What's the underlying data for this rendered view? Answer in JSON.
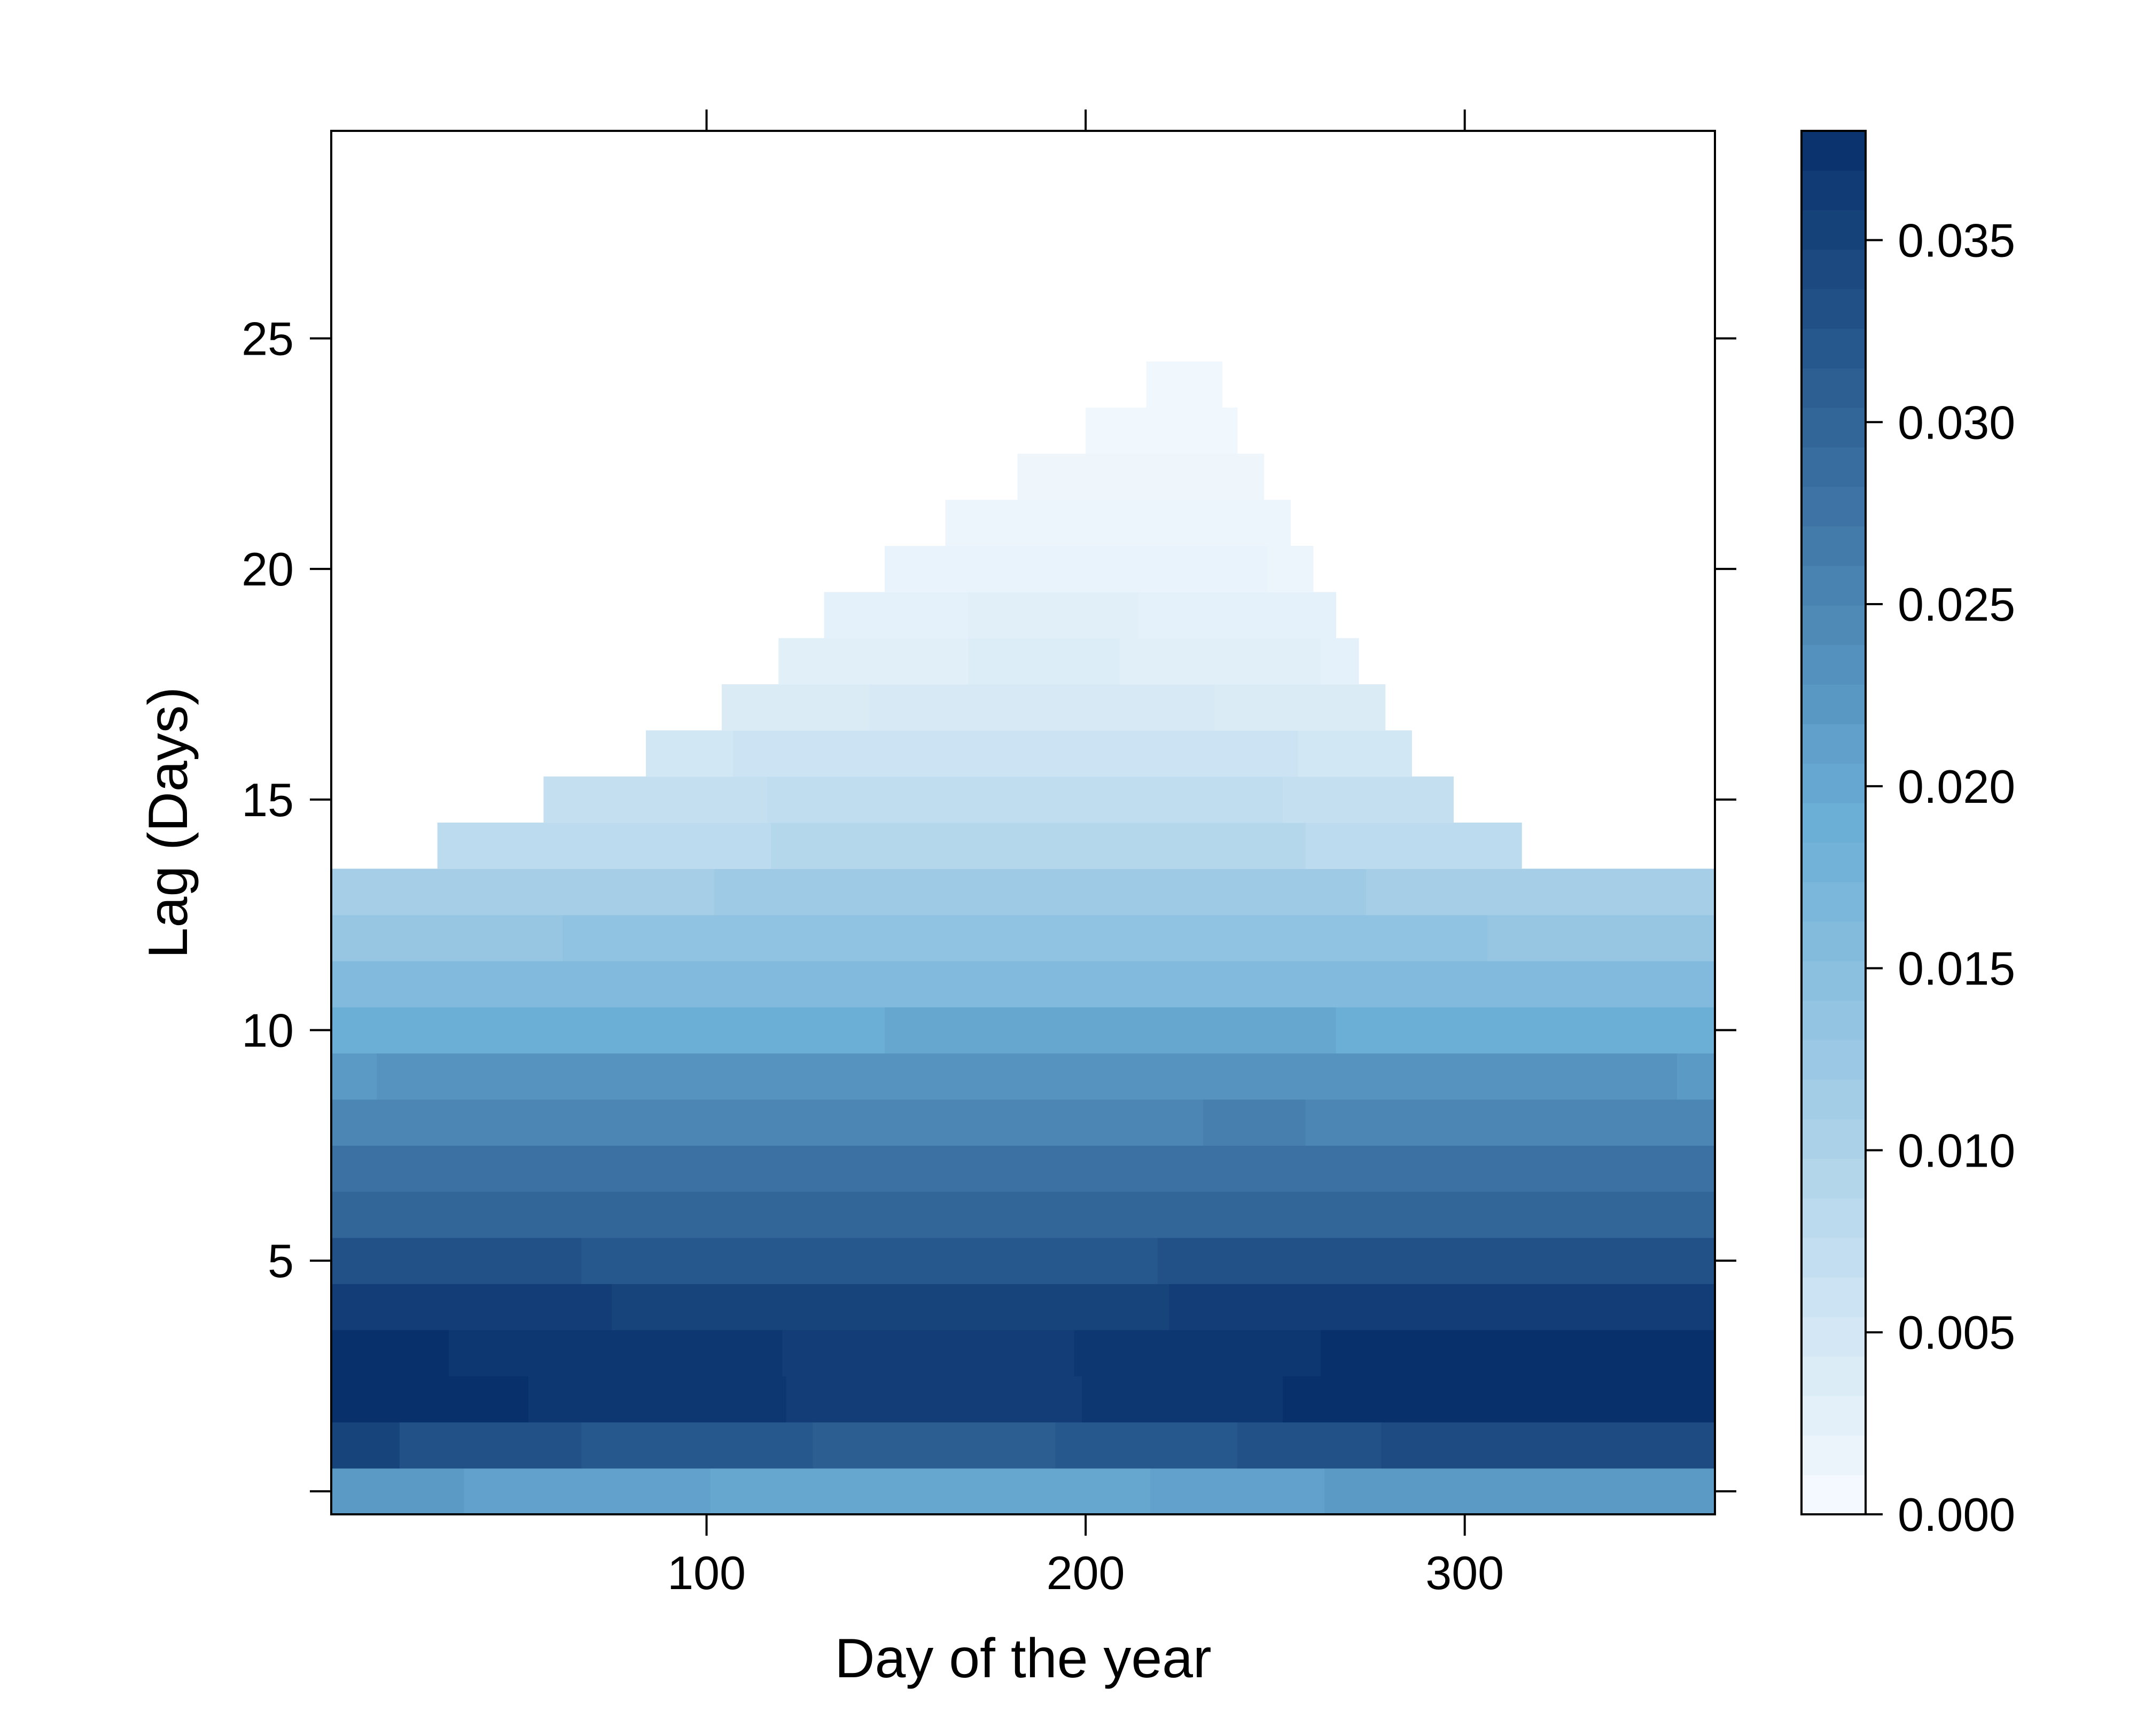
{
  "chart_data": {
    "type": "heatmap",
    "title": "",
    "xlabel": "Day of the year",
    "ylabel": "Lag (Days)",
    "xlim": [
      1,
      366
    ],
    "ylim": [
      -0.5,
      29.5
    ],
    "x_ticks": [
      "100",
      "200",
      "300"
    ],
    "x_tick_values": [
      100,
      200,
      300
    ],
    "y_ticks": [
      "5",
      "10",
      "15",
      "20",
      "25"
    ],
    "y_tick_values": [
      5,
      10,
      15,
      20,
      25
    ],
    "colorbar": {
      "min": 0.0,
      "max": 0.038,
      "ticks": [
        "0.000",
        "0.005",
        "0.010",
        "0.015",
        "0.020",
        "0.025",
        "0.030",
        "0.035"
      ],
      "tick_values": [
        0.0,
        0.005,
        0.01,
        0.015,
        0.02,
        0.025,
        0.03,
        0.035
      ],
      "color_low": "#f7fbff",
      "color_high": "#08306b"
    },
    "rows": [
      {
        "lag": 0,
        "segments": [
          [
            1,
            36,
            0.022
          ],
          [
            36,
            101,
            0.021
          ],
          [
            101,
            217,
            0.02
          ],
          [
            217,
            263,
            0.021
          ],
          [
            263,
            366,
            0.022
          ]
        ]
      },
      {
        "lag": 1,
        "segments": [
          [
            1,
            19,
            0.035
          ],
          [
            19,
            67,
            0.033
          ],
          [
            67,
            128,
            0.032
          ],
          [
            128,
            192,
            0.031
          ],
          [
            192,
            240,
            0.032
          ],
          [
            240,
            278,
            0.033
          ],
          [
            278,
            366,
            0.034
          ]
        ]
      },
      {
        "lag": 2,
        "segments": [
          [
            1,
            53,
            0.038
          ],
          [
            53,
            121,
            0.037
          ],
          [
            121,
            199,
            0.036
          ],
          [
            199,
            252,
            0.037
          ],
          [
            252,
            366,
            0.038
          ]
        ]
      },
      {
        "lag": 3,
        "segments": [
          [
            1,
            32,
            0.038
          ],
          [
            32,
            120,
            0.037
          ],
          [
            120,
            197,
            0.036
          ],
          [
            197,
            262,
            0.037
          ],
          [
            262,
            366,
            0.038
          ]
        ]
      },
      {
        "lag": 4,
        "segments": [
          [
            1,
            75,
            0.036
          ],
          [
            75,
            222,
            0.035
          ],
          [
            222,
            366,
            0.036
          ]
        ]
      },
      {
        "lag": 5,
        "segments": [
          [
            1,
            67,
            0.033
          ],
          [
            67,
            219,
            0.032
          ],
          [
            219,
            366,
            0.033
          ]
        ]
      },
      {
        "lag": 6,
        "segments": [
          [
            1,
            366,
            0.03
          ]
        ]
      },
      {
        "lag": 7,
        "segments": [
          [
            1,
            366,
            0.028
          ]
        ]
      },
      {
        "lag": 8,
        "segments": [
          [
            1,
            231,
            0.025
          ],
          [
            231,
            258,
            0.026
          ],
          [
            258,
            366,
            0.025
          ]
        ]
      },
      {
        "lag": 9,
        "segments": [
          [
            1,
            13,
            0.022
          ],
          [
            13,
            356,
            0.023
          ],
          [
            356,
            366,
            0.022
          ]
        ]
      },
      {
        "lag": 10,
        "segments": [
          [
            1,
            147,
            0.019
          ],
          [
            147,
            266,
            0.02
          ],
          [
            266,
            366,
            0.019
          ]
        ]
      },
      {
        "lag": 11,
        "segments": [
          [
            1,
            366,
            0.016
          ]
        ]
      },
      {
        "lag": 12,
        "segments": [
          [
            1,
            62,
            0.013
          ],
          [
            62,
            306,
            0.014
          ],
          [
            306,
            366,
            0.013
          ]
        ]
      },
      {
        "lag": 13,
        "segments": [
          [
            1,
            102,
            0.011
          ],
          [
            102,
            274,
            0.012
          ],
          [
            274,
            366,
            0.011
          ]
        ]
      },
      {
        "lag": 14,
        "segments": [
          [
            29,
            117,
            0.008
          ],
          [
            117,
            258,
            0.009
          ],
          [
            258,
            315,
            0.008
          ]
        ]
      },
      {
        "lag": 15,
        "segments": [
          [
            57,
            116,
            0.007
          ],
          [
            116,
            252,
            0.0075
          ],
          [
            252,
            297,
            0.007
          ]
        ]
      },
      {
        "lag": 16,
        "segments": [
          [
            84,
            107,
            0.005
          ],
          [
            107,
            256,
            0.006
          ],
          [
            256,
            286,
            0.005
          ]
        ]
      },
      {
        "lag": 17,
        "segments": [
          [
            104,
            143,
            0.004
          ],
          [
            143,
            234,
            0.0045
          ],
          [
            234,
            279,
            0.004
          ],
          [
            279,
            279,
            0.004
          ]
        ]
      },
      {
        "lag": 18,
        "segments": [
          [
            119,
            169,
            0.003
          ],
          [
            169,
            209,
            0.0035
          ],
          [
            209,
            262,
            0.003
          ],
          [
            262,
            272,
            0.0025
          ]
        ]
      },
      {
        "lag": 19,
        "segments": [
          [
            131,
            169,
            0.0025
          ],
          [
            169,
            214,
            0.003
          ],
          [
            214,
            266,
            0.0025
          ]
        ]
      },
      {
        "lag": 20,
        "segments": [
          [
            147,
            248,
            0.002
          ],
          [
            248,
            260,
            0.0015
          ]
        ]
      },
      {
        "lag": 21,
        "segments": [
          [
            163,
            254,
            0.0015
          ]
        ]
      },
      {
        "lag": 22,
        "segments": [
          [
            182,
            247,
            0.0012
          ]
        ]
      },
      {
        "lag": 23,
        "segments": [
          [
            200,
            240,
            0.001
          ]
        ]
      },
      {
        "lag": 24,
        "segments": [
          [
            216,
            236,
            0.0008
          ]
        ]
      }
    ]
  }
}
